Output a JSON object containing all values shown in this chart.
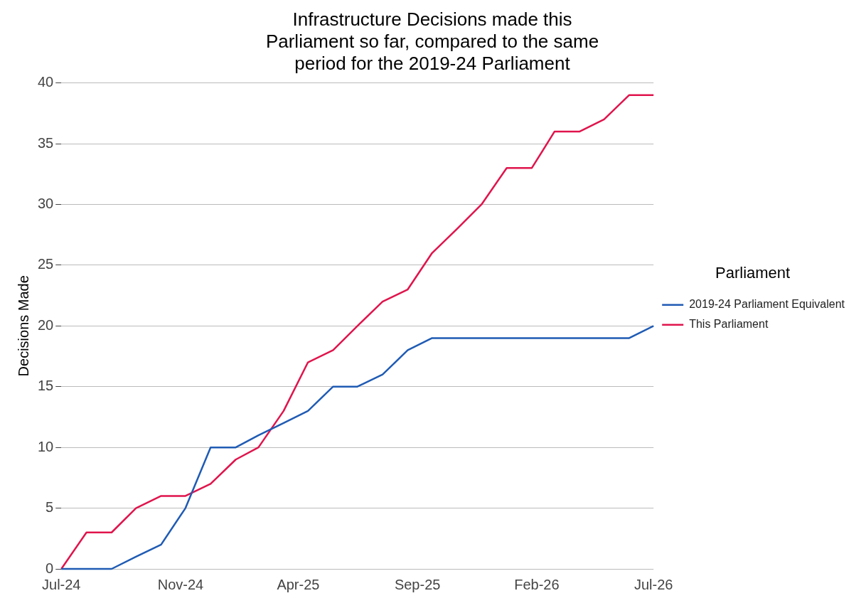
{
  "chart_data": {
    "type": "line",
    "title": "Infrastructure Decisions made this Parliament so far, compared to the same period for the 2019-24 Parliament",
    "ylabel": "Decisions Made",
    "legend_title": "Parliament",
    "x": [
      "2024-07",
      "2024-08",
      "2024-09",
      "2024-10",
      "2024-11",
      "2024-12",
      "2025-01",
      "2025-02",
      "2025-03",
      "2025-04",
      "2025-05",
      "2025-06",
      "2025-07",
      "2025-08",
      "2025-09",
      "2025-10",
      "2025-11",
      "2025-12",
      "2026-01",
      "2026-02",
      "2026-03",
      "2026-04",
      "2026-05",
      "2026-06",
      "2026-07"
    ],
    "series": [
      {
        "name": "2019-24 Parliament Equivalent",
        "color": "#1f5bb4",
        "values": [
          0,
          0,
          0,
          1,
          2,
          5,
          10,
          10,
          11,
          12,
          13,
          15,
          15,
          16,
          18,
          19,
          19,
          19,
          19,
          19,
          19,
          19,
          19,
          19,
          20
        ]
      },
      {
        "name": "This Parliament",
        "color": "#e0144c",
        "values": [
          0,
          3,
          3,
          5,
          6,
          6,
          7,
          9,
          10,
          13,
          17,
          18,
          20,
          22,
          23,
          26,
          28,
          30,
          33,
          33,
          36,
          36,
          37,
          39,
          39
        ]
      }
    ],
    "xlim": [
      "2024-07-01",
      "2026-07-01"
    ],
    "xticks": [
      {
        "value": "2024-07-01",
        "label": "Jul-24"
      },
      {
        "value": "2024-11-25",
        "label": "Nov-24"
      },
      {
        "value": "2025-04-19",
        "label": "Apr-25"
      },
      {
        "value": "2025-09-13",
        "label": "Sep-25"
      },
      {
        "value": "2026-02-07",
        "label": "Feb-26"
      },
      {
        "value": "2026-07-01",
        "label": "Jul-26"
      }
    ],
    "ylim": [
      0,
      40
    ],
    "yticks": [
      0,
      5,
      10,
      15,
      20,
      25,
      30,
      35,
      40
    ],
    "grid": "y",
    "legend": "right",
    "marker": "none",
    "line_style": "solid"
  }
}
